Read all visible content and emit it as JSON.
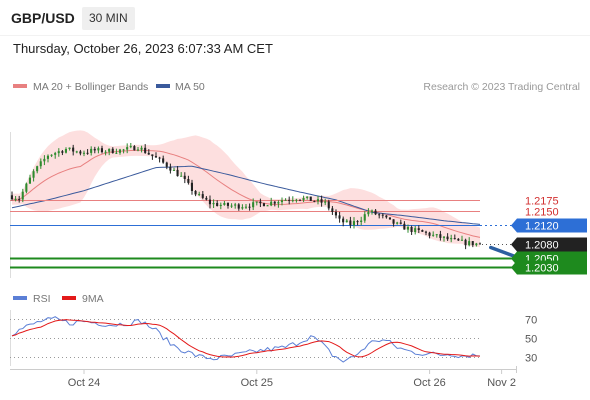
{
  "header": {
    "symbol": "GBP/USD",
    "timeframe": "30 MIN",
    "datetime": "Thursday, October 26, 2023 6:07:33 AM CET"
  },
  "colors": {
    "ma20": "#e88080",
    "bollinger_fill": "#fdd9d9",
    "ma50": "#3a5a9c",
    "resistance": "#e88080",
    "current_line": "#2d6fd6",
    "support": "#1e8a1e",
    "candle_up": "#2e8b2e",
    "candle_down": "#222222",
    "rsi": "#5b7fd6",
    "rsi_ma": "#e31a1a",
    "arrow": "#2c5fa0"
  },
  "chart_data": {
    "type": "candlestick",
    "legend": [
      {
        "name": "MA 20 + Bollinger Bands",
        "color": "#e88080"
      },
      {
        "name": "MA 50",
        "color": "#3a5a9c"
      }
    ],
    "credit": "Research © 2023 Trading Central",
    "y_range": [
      1.2006,
      1.2322
    ],
    "x_range": [
      0,
      130
    ],
    "x_ticks": [
      {
        "label": "Oct 24",
        "x": 20
      },
      {
        "label": "Oct 25",
        "x": 68
      },
      {
        "label": "Oct 26",
        "x": 116
      },
      {
        "label": "Nov 2",
        "x": 136
      }
    ],
    "price_anchors": [
      [
        0,
        1.2185
      ],
      [
        3,
        1.2178
      ],
      [
        7,
        1.2235
      ],
      [
        11,
        1.2272
      ],
      [
        16,
        1.2285
      ],
      [
        20,
        1.2278
      ],
      [
        24,
        1.2282
      ],
      [
        28,
        1.2281
      ],
      [
        32,
        1.2283
      ],
      [
        36,
        1.229
      ],
      [
        40,
        1.227
      ],
      [
        44,
        1.225
      ],
      [
        48,
        1.2225
      ],
      [
        52,
        1.2188
      ],
      [
        56,
        1.2168
      ],
      [
        60,
        1.2163
      ],
      [
        64,
        1.2162
      ],
      [
        68,
        1.2165
      ],
      [
        72,
        1.2168
      ],
      [
        76,
        1.2175
      ],
      [
        80,
        1.218
      ],
      [
        84,
        1.2175
      ],
      [
        88,
        1.2168
      ],
      [
        92,
        1.213
      ],
      [
        95,
        1.2122
      ],
      [
        98,
        1.2135
      ],
      [
        100,
        1.215
      ],
      [
        103,
        1.2142
      ],
      [
        106,
        1.2128
      ],
      [
        109,
        1.2118
      ],
      [
        112,
        1.211
      ],
      [
        115,
        1.2105
      ],
      [
        118,
        1.2098
      ],
      [
        121,
        1.2092
      ],
      [
        124,
        1.2086
      ],
      [
        127,
        1.2082
      ],
      [
        130,
        1.208
      ]
    ],
    "ma50_anchors": [
      [
        0,
        1.2158
      ],
      [
        10,
        1.2175
      ],
      [
        20,
        1.2195
      ],
      [
        30,
        1.222
      ],
      [
        40,
        1.2245
      ],
      [
        50,
        1.2248
      ],
      [
        60,
        1.223
      ],
      [
        70,
        1.221
      ],
      [
        80,
        1.2192
      ],
      [
        90,
        1.2175
      ],
      [
        100,
        1.2148
      ],
      [
        110,
        1.214
      ],
      [
        120,
        1.213
      ],
      [
        130,
        1.2122
      ]
    ],
    "levels": [
      {
        "label": "1.2175",
        "value": 1.2175,
        "kind": "resistance"
      },
      {
        "label": "1.2150",
        "value": 1.215,
        "kind": "resistance"
      },
      {
        "label": "1.2120",
        "value": 1.212,
        "kind": "current"
      },
      {
        "label": "1.2080",
        "value": 1.208,
        "kind": "last"
      },
      {
        "label": "1.2050",
        "value": 1.205,
        "kind": "support"
      },
      {
        "label": "1.2030",
        "value": 1.203,
        "kind": "support"
      }
    ],
    "forecast": {
      "from": [
        133,
        1.2072
      ],
      "to": [
        142,
        1.2042
      ]
    },
    "rsi": {
      "legend": [
        {
          "name": "RSI",
          "color": "#5b7fd6"
        },
        {
          "name": "9MA",
          "color": "#e31a1a"
        }
      ],
      "y_range": [
        20,
        80
      ],
      "ticks": [
        70,
        50,
        30
      ],
      "anchors": [
        [
          0,
          55
        ],
        [
          4,
          62
        ],
        [
          8,
          68
        ],
        [
          12,
          70
        ],
        [
          16,
          66
        ],
        [
          20,
          68
        ],
        [
          24,
          66
        ],
        [
          28,
          64
        ],
        [
          32,
          66
        ],
        [
          36,
          68
        ],
        [
          40,
          58
        ],
        [
          44,
          44
        ],
        [
          48,
          36
        ],
        [
          52,
          30
        ],
        [
          56,
          28
        ],
        [
          60,
          30
        ],
        [
          64,
          33
        ],
        [
          68,
          36
        ],
        [
          72,
          38
        ],
        [
          76,
          40
        ],
        [
          80,
          46
        ],
        [
          83,
          52
        ],
        [
          86,
          44
        ],
        [
          89,
          32
        ],
        [
          92,
          25
        ],
        [
          95,
          30
        ],
        [
          98,
          40
        ],
        [
          101,
          48
        ],
        [
          104,
          47
        ],
        [
          107,
          40
        ],
        [
          110,
          36
        ],
        [
          113,
          34
        ],
        [
          116,
          33
        ],
        [
          119,
          32
        ],
        [
          122,
          33
        ],
        [
          125,
          31
        ],
        [
          128,
          32
        ],
        [
          130,
          31
        ]
      ]
    }
  }
}
